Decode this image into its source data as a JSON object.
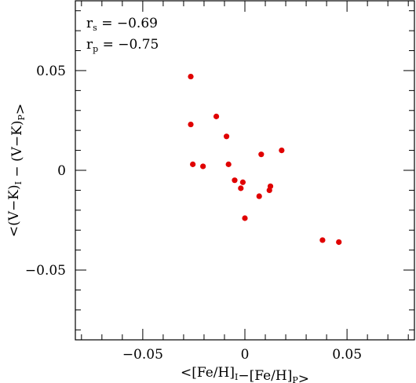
{
  "chart_data": {
    "type": "scatter",
    "title": "",
    "xlabel": "<[Fe/H]_I−[Fe/H]_P>",
    "ylabel": "<(V−K)_I − (V−K)_P>",
    "xlim": [
      -0.083,
      0.083
    ],
    "ylim": [
      -0.085,
      0.085
    ],
    "x_ticks": [
      -0.05,
      0,
      0.05
    ],
    "x_tick_labels": [
      "−0.05",
      "0",
      "0.05"
    ],
    "y_ticks": [
      -0.05,
      0,
      0.05
    ],
    "y_tick_labels": [
      "−0.05",
      "0",
      "0.05"
    ],
    "x_minor_step": 0.01,
    "y_minor_step": 0.01,
    "grid": false,
    "marker_color": "#e00000",
    "annotations": [
      {
        "symbol": "r",
        "subscript": "s",
        "text": " = −0.69"
      },
      {
        "symbol": "r",
        "subscript": "p",
        "text": " = −0.75"
      }
    ],
    "points": [
      {
        "x": -0.0265,
        "y": 0.047
      },
      {
        "x": -0.0265,
        "y": 0.023
      },
      {
        "x": -0.0255,
        "y": 0.003
      },
      {
        "x": -0.0205,
        "y": 0.002
      },
      {
        "x": -0.014,
        "y": 0.027
      },
      {
        "x": -0.009,
        "y": 0.017
      },
      {
        "x": -0.008,
        "y": 0.003
      },
      {
        "x": -0.005,
        "y": -0.005
      },
      {
        "x": -0.002,
        "y": -0.009
      },
      {
        "x": -0.001,
        "y": -0.006
      },
      {
        "x": 0.0,
        "y": -0.024
      },
      {
        "x": 0.007,
        "y": -0.013
      },
      {
        "x": 0.008,
        "y": 0.008
      },
      {
        "x": 0.012,
        "y": -0.01
      },
      {
        "x": 0.0125,
        "y": -0.008
      },
      {
        "x": 0.018,
        "y": 0.01
      },
      {
        "x": 0.038,
        "y": -0.035
      },
      {
        "x": 0.046,
        "y": -0.036
      }
    ]
  }
}
